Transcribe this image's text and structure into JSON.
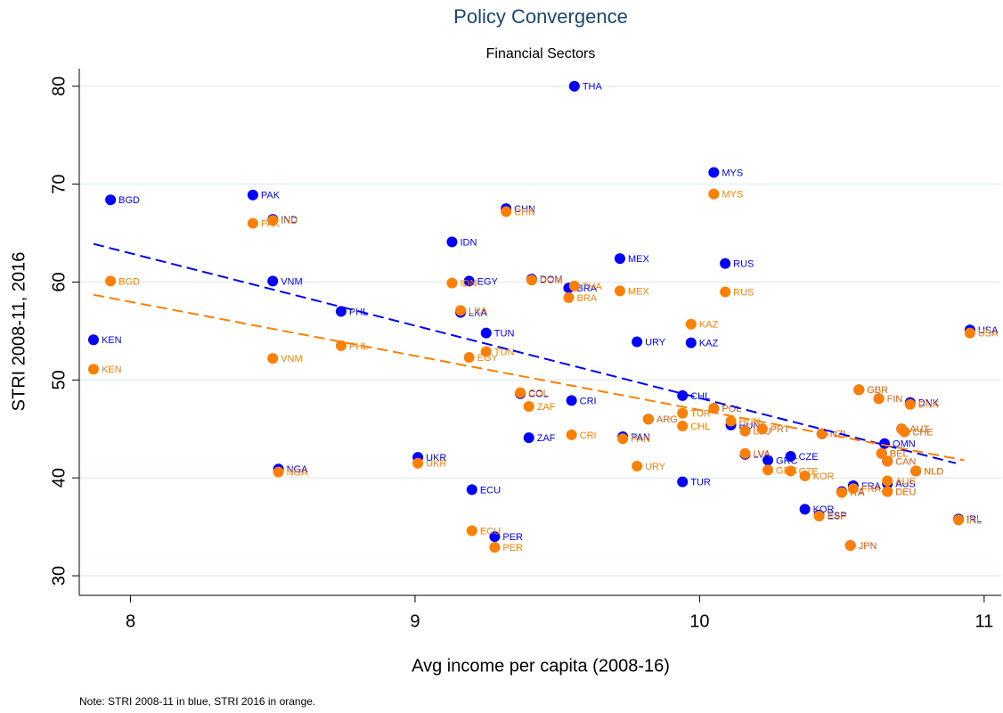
{
  "chart_data": {
    "type": "scatter",
    "title": "Policy Convergence",
    "subtitle": "Financial Sectors",
    "x_label": "Avg income per capita (2008-16)",
    "y_label": "STRI 2008-11, 2016",
    "note": "Note: STRI 2008-11 in blue, STRI 2016 in orange.",
    "xlim": [
      7.82,
      11.06
    ],
    "ylim": [
      28,
      81.8
    ],
    "xticks": [
      8,
      9,
      10,
      11
    ],
    "yticks": [
      30,
      40,
      50,
      60,
      70,
      80
    ],
    "grid": true,
    "labels": [
      "BGD",
      "PAK",
      "IND",
      "KEN",
      "VNM",
      "PHL",
      "NGA",
      "UKR",
      "THA",
      "BRA",
      "CHN",
      "IDN",
      "EGY",
      "DOM",
      "LKA",
      "TUN",
      "MEX",
      "RUS",
      "MYS",
      "URY",
      "KAZ",
      "USA",
      "COL",
      "ZAF",
      "CRI",
      "ECU",
      "PER",
      "CHL",
      "TUR",
      "ARG",
      "PAN",
      "POL",
      "HUN",
      "LTU",
      "PRT",
      "LVA",
      "GRC",
      "CZE",
      "KOR",
      "NZL",
      "GBR",
      "FIN",
      "DNK",
      "AUT",
      "CHE",
      "OMN",
      "BEL",
      "CAN",
      "NLD",
      "AUS",
      "DEU",
      "FRA",
      "ITA",
      "ESP",
      "JPN",
      "IRL"
    ],
    "x": [
      7.93,
      8.43,
      8.5,
      7.87,
      8.5,
      8.74,
      8.52,
      9.01,
      9.56,
      9.54,
      9.32,
      9.13,
      9.19,
      9.41,
      9.16,
      9.25,
      9.72,
      10.09,
      10.05,
      9.78,
      9.97,
      10.95,
      9.37,
      9.4,
      9.55,
      9.2,
      9.28,
      9.94,
      9.94,
      9.82,
      9.73,
      10.05,
      10.11,
      10.16,
      10.22,
      10.16,
      10.24,
      10.32,
      10.37,
      10.43,
      10.56,
      10.63,
      10.74,
      10.71,
      10.72,
      10.65,
      10.64,
      10.66,
      10.76,
      10.66,
      10.66,
      10.54,
      10.5,
      10.42,
      10.53,
      10.91
    ],
    "series": [
      {
        "color": "#0000ff",
        "values": [
          68.4,
          68.9,
          66.4,
          54.1,
          60.1,
          57.0,
          40.9,
          42.1,
          80.0,
          59.4,
          67.5,
          64.1,
          60.1,
          60.3,
          56.9,
          54.8,
          62.4,
          61.9,
          71.2,
          53.9,
          53.8,
          55.1,
          48.6,
          44.1,
          47.9,
          38.8,
          34.0,
          48.4,
          39.6,
          46.0,
          44.2,
          47.1,
          45.4,
          44.8,
          45.0,
          42.4,
          41.8,
          42.2,
          36.8,
          44.5,
          49.0,
          48.1,
          47.7,
          45.0,
          44.7,
          43.5,
          42.5,
          41.7,
          40.7,
          39.4,
          38.6,
          39.2,
          38.6,
          36.2,
          33.1,
          35.8
        ]
      },
      {
        "color": "#ff8000",
        "values": [
          60.1,
          66.0,
          66.3,
          51.1,
          52.2,
          53.5,
          40.6,
          41.5,
          59.6,
          58.4,
          67.2,
          59.9,
          52.3,
          60.2,
          57.1,
          52.9,
          59.1,
          59.0,
          69.0,
          41.2,
          55.7,
          54.8,
          48.7,
          47.3,
          44.4,
          34.6,
          32.9,
          45.3,
          46.6,
          46.0,
          44.0,
          47.1,
          45.8,
          44.8,
          45.0,
          42.5,
          40.8,
          40.7,
          40.2,
          44.5,
          49.0,
          48.1,
          47.5,
          45.0,
          44.7,
          null,
          42.5,
          41.7,
          40.7,
          39.7,
          38.6,
          38.9,
          38.5,
          36.1,
          33.1,
          35.7
        ]
      }
    ],
    "trend_lines": [
      {
        "color": "#0000ff",
        "x": [
          7.87,
          10.9
        ],
        "y": [
          63.9,
          41.5
        ]
      },
      {
        "color": "#ff8000",
        "x": [
          7.87,
          10.93
        ],
        "y": [
          58.7,
          41.8
        ]
      }
    ]
  }
}
